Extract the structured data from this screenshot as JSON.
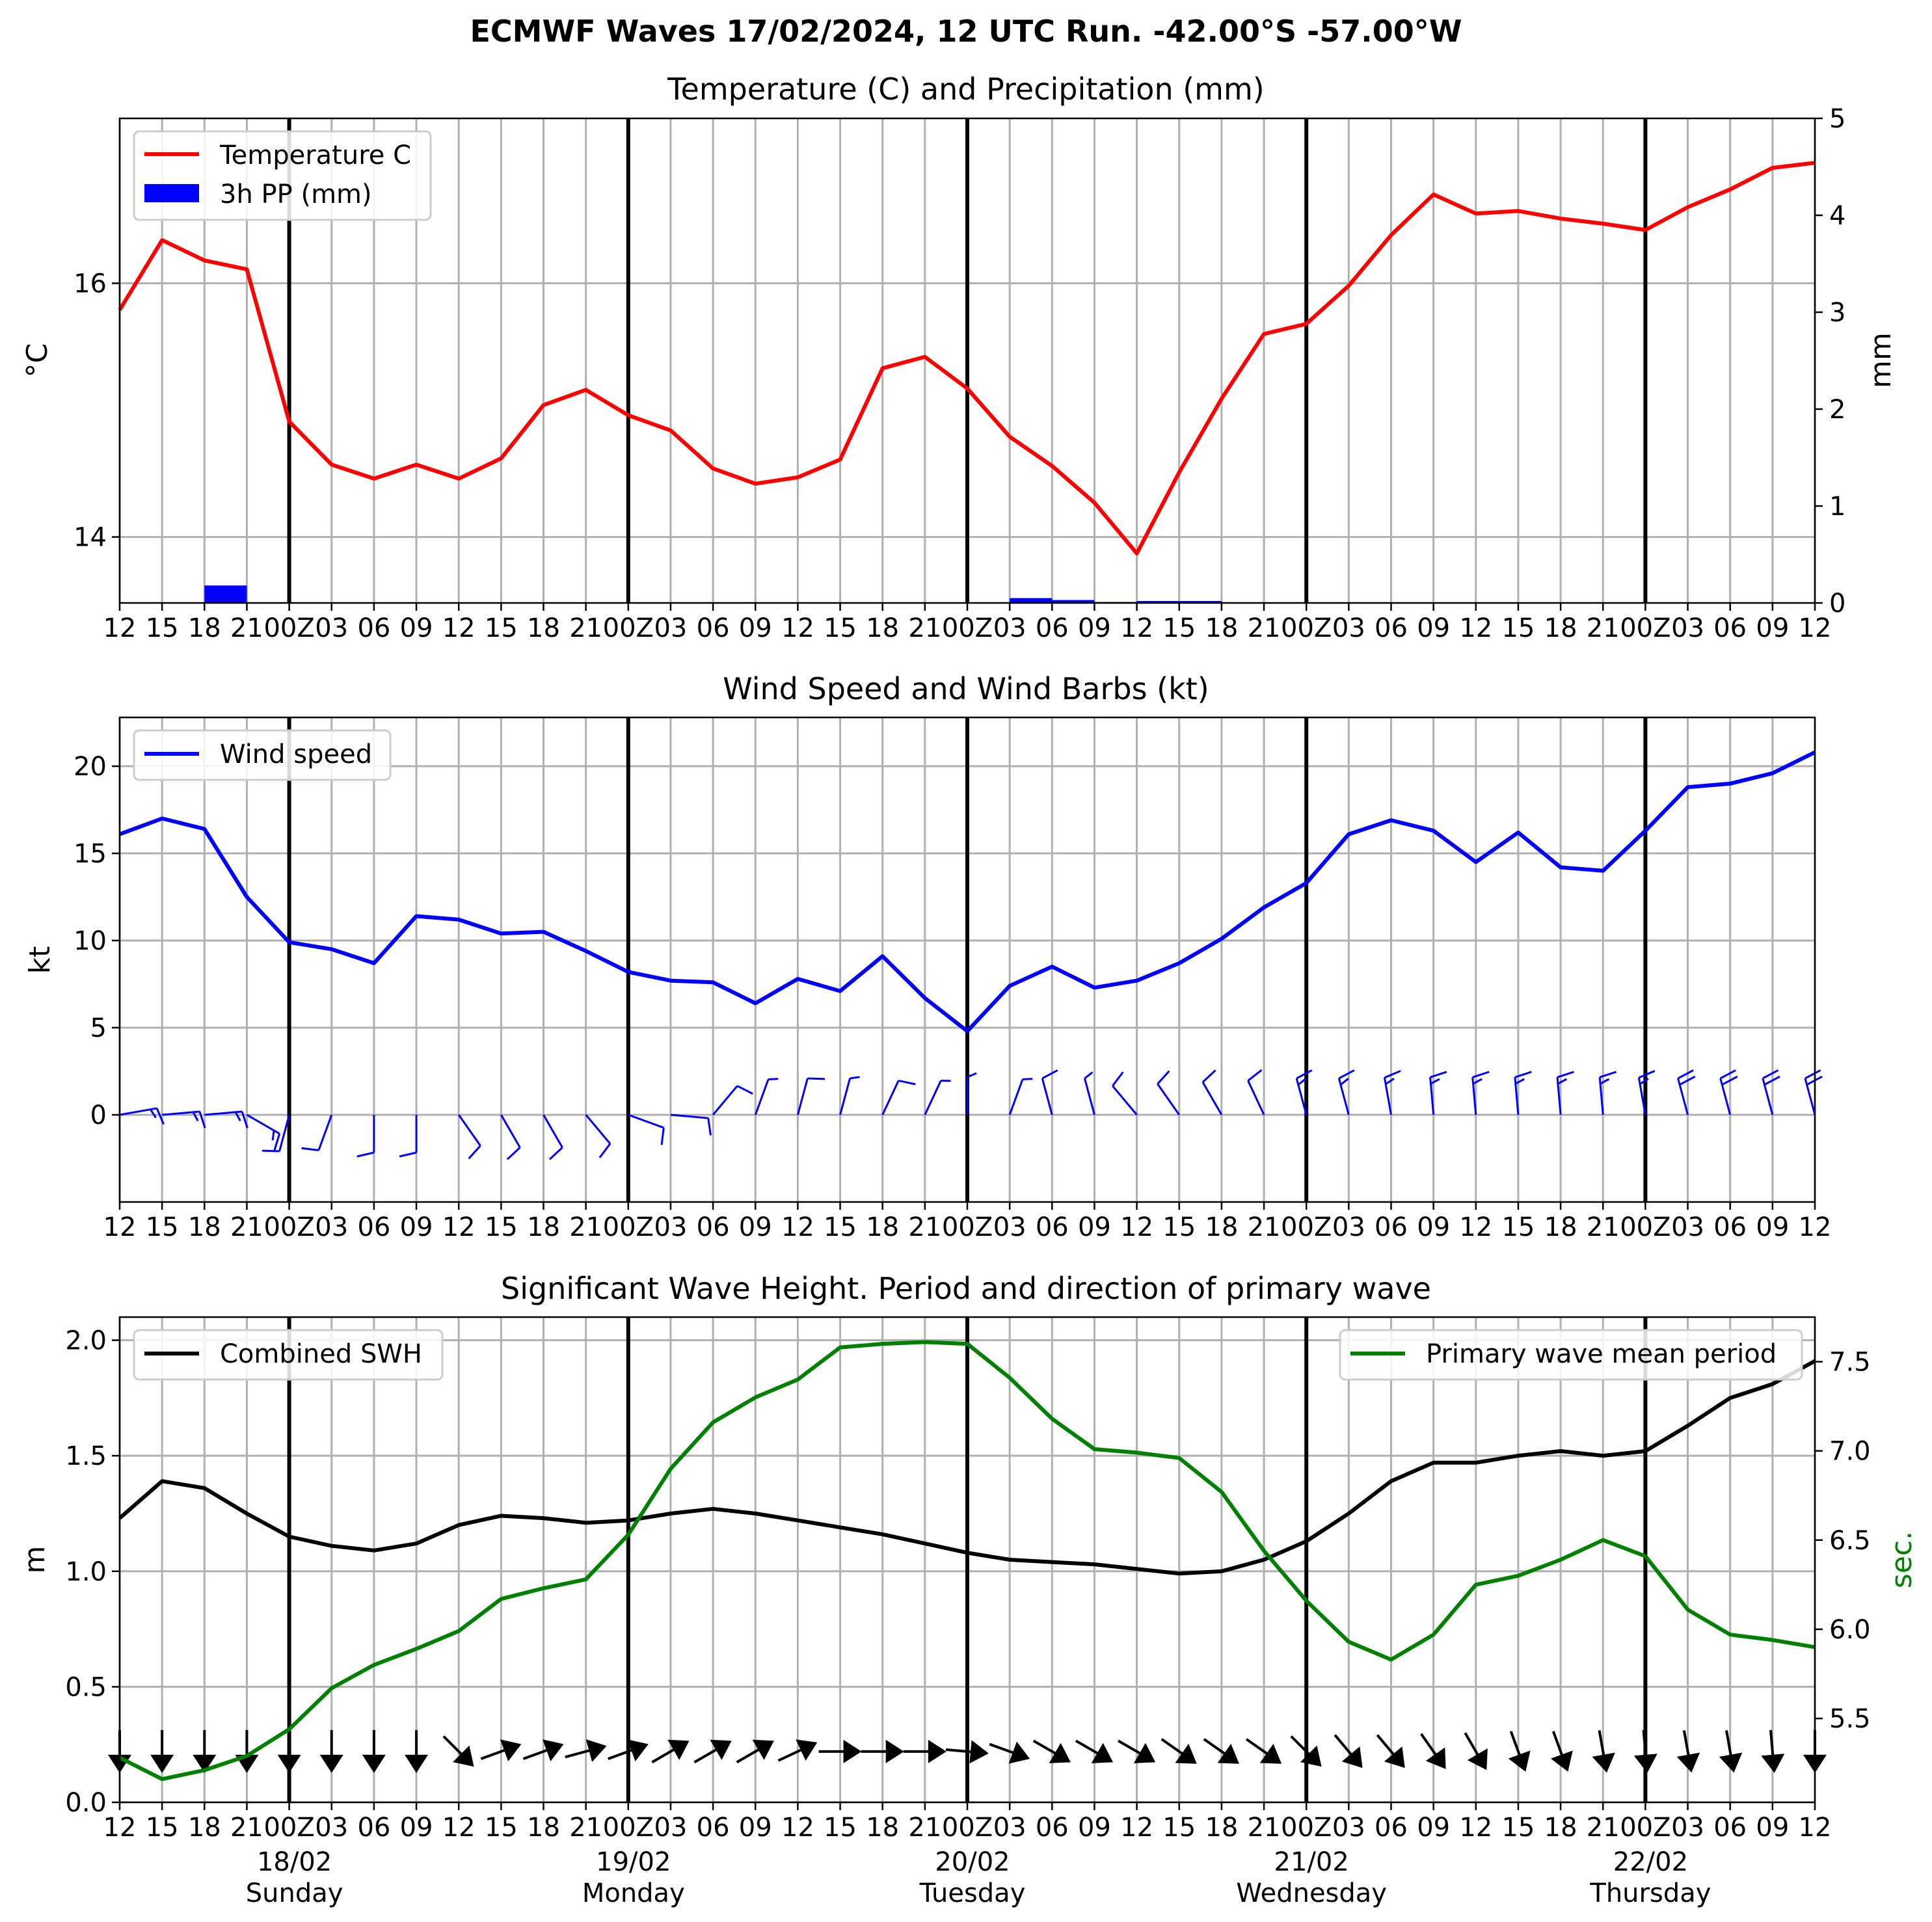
{
  "figure": {
    "suptitle": "ECMWF Waves 17/02/2024, 12 UTC Run. -42.00°S -57.00°W"
  },
  "time_axis": {
    "hour_labels": [
      "12",
      "15",
      "18",
      "21",
      "00Z",
      "03",
      "06",
      "09",
      "12",
      "15",
      "18",
      "21",
      "00Z",
      "03",
      "06",
      "09",
      "12",
      "15",
      "18",
      "21",
      "00Z",
      "03",
      "06",
      "09",
      "12",
      "15",
      "18",
      "21",
      "00Z",
      "03",
      "06",
      "09",
      "12",
      "15",
      "18",
      "21",
      "00Z",
      "03",
      "06",
      "09",
      "12"
    ],
    "day_markers": [
      {
        "date": "18/02",
        "day": "Sunday"
      },
      {
        "date": "19/02",
        "day": "Monday"
      },
      {
        "date": "20/02",
        "day": "Tuesday"
      },
      {
        "date": "21/02",
        "day": "Wednesday"
      },
      {
        "date": "22/02",
        "day": "Thursday"
      }
    ]
  },
  "panels": {
    "temp": {
      "title": "Temperature (C) and Precipitation (mm)",
      "ylabel_left": "$^\\circ$C",
      "ylabel_right": "mm",
      "legend": [
        "Temperature C",
        "3h PP (mm)"
      ]
    },
    "wind": {
      "title": "Wind Speed and Wind Barbs (kt)",
      "ylabel": "kt",
      "legend": [
        "Wind speed"
      ]
    },
    "wave": {
      "title": "Significant Wave Height. Period and direction of primary wave",
      "ylabel_left": "m",
      "ylabel_right": "sec.",
      "legend_left": [
        "Combined SWH"
      ],
      "legend_right": [
        "Primary wave mean period"
      ]
    }
  },
  "colors": {
    "temperature": "#ff0000",
    "precipitation": "#0000ff",
    "wind": "#0000ff",
    "swh": "#000000",
    "period": "#008000"
  },
  "chart_data": [
    {
      "type": "line",
      "title": "Temperature (C) and Precipitation (mm)",
      "x_step_hours": 3,
      "ylim_left": [
        13.48,
        17.3
      ],
      "yticks_left": [
        14,
        16
      ],
      "ylim_right": [
        0,
        5
      ],
      "yticks_right": [
        0,
        1,
        2,
        3,
        4,
        5
      ],
      "series": [
        {
          "name": "Temperature C",
          "axis": "left",
          "values": [
            15.79,
            16.34,
            16.18,
            16.11,
            14.91,
            14.57,
            14.46,
            14.57,
            14.46,
            14.62,
            15.04,
            15.16,
            14.96,
            14.84,
            14.54,
            14.42,
            14.47,
            14.61,
            15.33,
            15.42,
            15.17,
            14.79,
            14.56,
            14.27,
            13.87,
            14.51,
            15.09,
            15.6,
            15.68,
            15.98,
            16.38,
            16.7,
            16.55,
            16.57,
            16.51,
            16.47,
            16.42,
            16.6,
            16.74,
            16.91,
            16.95
          ]
        },
        {
          "name": "3h PP (mm)",
          "axis": "right",
          "kind": "bar",
          "values": [
            0,
            0,
            0,
            0.18,
            0,
            0,
            0,
            0,
            0,
            0,
            0,
            0,
            0,
            0,
            0,
            0,
            0,
            0,
            0,
            0,
            0,
            0,
            0.05,
            0.03,
            0.01,
            0.02,
            0.02,
            0,
            0,
            0,
            0,
            0,
            0,
            0,
            0,
            0,
            0,
            0,
            0,
            0,
            0
          ]
        }
      ]
    },
    {
      "type": "line",
      "title": "Wind Speed and Wind Barbs (kt)",
      "x_step_hours": 3,
      "ylim": [
        -5,
        22.8
      ],
      "yticks": [
        0,
        5,
        10,
        15,
        20
      ],
      "series": [
        {
          "name": "Wind speed",
          "values": [
            16.1,
            17.0,
            16.4,
            12.5,
            9.9,
            9.5,
            8.7,
            11.4,
            11.2,
            10.4,
            10.5,
            9.4,
            8.2,
            7.7,
            7.6,
            6.4,
            7.8,
            7.1,
            9.1,
            6.7,
            4.8,
            7.4,
            8.5,
            7.3,
            7.7,
            8.7,
            10.1,
            11.9,
            13.3,
            16.1,
            16.9,
            16.3,
            14.5,
            16.2,
            14.2,
            14.0,
            16.3,
            18.8,
            19.0,
            19.6,
            20.8
          ]
        }
      ],
      "barb_direction_from_deg": [
        80,
        85,
        85,
        120,
        195,
        200,
        180,
        180,
        145,
        150,
        150,
        140,
        110,
        95,
        40,
        20,
        15,
        15,
        25,
        25,
        0,
        20,
        345,
        345,
        320,
        325,
        330,
        335,
        345,
        345,
        350,
        355,
        355,
        355,
        355,
        355,
        350,
        345,
        345,
        345,
        345
      ]
    },
    {
      "type": "line",
      "title": "Significant Wave Height. Period and direction of primary wave",
      "x_step_hours": 3,
      "ylim_left": [
        0,
        2.1
      ],
      "yticks_left": [
        0.0,
        0.5,
        1.0,
        1.5,
        2.0
      ],
      "ylim_right": [
        5.03,
        7.75
      ],
      "yticks_right": [
        5.5,
        6.0,
        6.5,
        7.0,
        7.5
      ],
      "series": [
        {
          "name": "Combined SWH",
          "axis": "left",
          "values": [
            1.23,
            1.39,
            1.36,
            1.25,
            1.15,
            1.11,
            1.09,
            1.12,
            1.2,
            1.24,
            1.23,
            1.21,
            1.22,
            1.25,
            1.27,
            1.25,
            1.22,
            1.19,
            1.16,
            1.12,
            1.08,
            1.05,
            1.04,
            1.03,
            1.01,
            0.99,
            1.0,
            1.05,
            1.13,
            1.25,
            1.39,
            1.47,
            1.47,
            1.5,
            1.52,
            1.5,
            1.52,
            1.63,
            1.75,
            1.81,
            1.91
          ]
        },
        {
          "name": "Primary wave mean period",
          "axis": "right",
          "values": [
            5.28,
            5.16,
            5.21,
            5.29,
            5.44,
            5.67,
            5.8,
            5.89,
            5.99,
            6.17,
            6.23,
            6.28,
            6.53,
            6.9,
            7.16,
            7.3,
            7.4,
            7.58,
            7.6,
            7.61,
            7.6,
            7.41,
            7.18,
            7.01,
            6.99,
            6.96,
            6.77,
            6.44,
            6.16,
            5.93,
            5.83,
            5.97,
            6.25,
            6.3,
            6.39,
            6.5,
            6.41,
            6.11,
            5.97,
            5.94,
            5.9
          ]
        }
      ],
      "arrow_direction_to_deg": [
        180,
        180,
        180,
        180,
        180,
        180,
        180,
        180,
        135,
        70,
        70,
        75,
        70,
        60,
        60,
        60,
        65,
        90,
        90,
        90,
        95,
        110,
        120,
        120,
        120,
        125,
        125,
        125,
        135,
        140,
        140,
        145,
        150,
        160,
        160,
        170,
        175,
        170,
        170,
        175,
        180
      ]
    }
  ]
}
